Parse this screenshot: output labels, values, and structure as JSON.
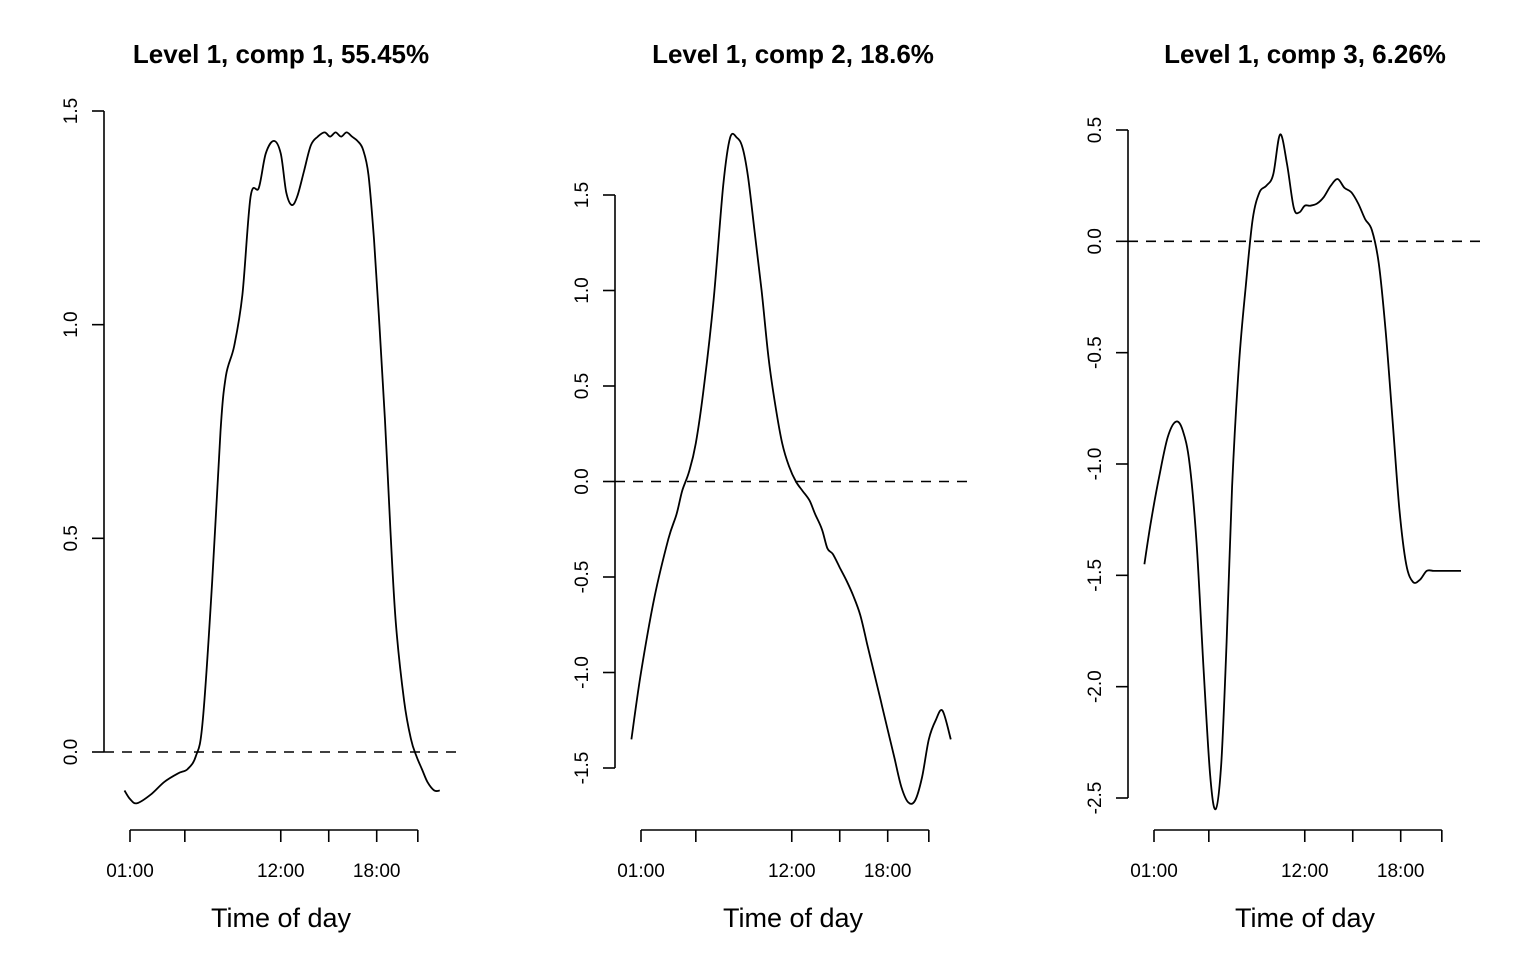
{
  "chart_data": [
    {
      "type": "line",
      "title": "Level 1, comp 1, 55.45%",
      "xlabel": "Time of day",
      "ylabel": "",
      "ylim": [
        -0.15,
        1.5
      ],
      "yticks": [
        0.0,
        0.5,
        1.0,
        1.5
      ],
      "ytick_labels": [
        "0.0",
        "0.5",
        "1.0",
        "1.5"
      ],
      "xlim": [
        0,
        24
      ],
      "xticks": [
        1,
        5,
        12,
        15.5,
        19,
        22
      ],
      "xtick_labels": [
        "01:00",
        "",
        "12:00",
        "",
        "18:00",
        ""
      ],
      "reference_line": 0,
      "series": [
        {
          "x": [
            0.6,
            1.0,
            1.5,
            2.5,
            3.5,
            4.5,
            5.2,
            5.8,
            6.3,
            7.0,
            7.6,
            8.0,
            8.6,
            9.2,
            9.8,
            10.4,
            10.9,
            11.5,
            12.0,
            12.4,
            12.8,
            13.2,
            13.7,
            14.2,
            14.7,
            15.2,
            15.6,
            16.0,
            16.4,
            16.8,
            17.2,
            17.6,
            18.0,
            18.4,
            18.8,
            19.2,
            19.6,
            20.0,
            20.4,
            21.0,
            21.5,
            21.9,
            22.3,
            22.7,
            23.2,
            23.6
          ],
          "y": [
            -0.09,
            -0.11,
            -0.12,
            -0.1,
            -0.07,
            -0.05,
            -0.04,
            -0.01,
            0.07,
            0.4,
            0.75,
            0.88,
            0.95,
            1.07,
            1.3,
            1.32,
            1.4,
            1.43,
            1.4,
            1.31,
            1.28,
            1.3,
            1.36,
            1.42,
            1.44,
            1.45,
            1.44,
            1.45,
            1.44,
            1.45,
            1.44,
            1.43,
            1.41,
            1.35,
            1.2,
            1.0,
            0.78,
            0.52,
            0.3,
            0.12,
            0.03,
            -0.01,
            -0.04,
            -0.07,
            -0.09,
            -0.09
          ]
        }
      ]
    },
    {
      "type": "line",
      "title": "Level 1, comp 2, 18.6%",
      "xlabel": "Time of day",
      "ylabel": "",
      "ylim": [
        -1.6,
        1.85
      ],
      "yticks": [
        -1.5,
        -1.0,
        -0.5,
        0.0,
        0.5,
        1.0,
        1.5
      ],
      "ytick_labels": [
        "-1.5",
        "-1.0",
        "-0.5",
        "0.0",
        "0.5",
        "1.0",
        "1.5"
      ],
      "xlim": [
        0,
        24
      ],
      "xticks": [
        1,
        5,
        12,
        15.5,
        19,
        22
      ],
      "xtick_labels": [
        "01:00",
        "",
        "12:00",
        "",
        "18:00",
        ""
      ],
      "reference_line": 0,
      "series": [
        {
          "x": [
            0.3,
            1.0,
            2.0,
            3.0,
            3.6,
            4.0,
            4.5,
            5.0,
            5.6,
            6.3,
            7.0,
            7.5,
            8.0,
            8.4,
            8.8,
            9.3,
            9.8,
            10.3,
            10.8,
            11.3,
            11.8,
            12.3,
            12.8,
            13.3,
            13.7,
            14.2,
            14.6,
            15.0,
            15.5,
            16.0,
            16.5,
            17.0,
            17.5,
            18.0,
            18.5,
            19.0,
            19.5,
            20.0,
            20.5,
            21.0,
            21.5,
            22.0,
            22.5,
            23.0,
            23.6
          ],
          "y": [
            -1.35,
            -1.0,
            -0.6,
            -0.3,
            -0.17,
            -0.05,
            0.05,
            0.2,
            0.5,
            0.95,
            1.55,
            1.8,
            1.8,
            1.75,
            1.6,
            1.3,
            1.0,
            0.65,
            0.4,
            0.2,
            0.08,
            0.0,
            -0.05,
            -0.1,
            -0.17,
            -0.25,
            -0.35,
            -0.38,
            -0.45,
            -0.52,
            -0.6,
            -0.7,
            -0.85,
            -1.0,
            -1.15,
            -1.3,
            -1.45,
            -1.6,
            -1.68,
            -1.67,
            -1.55,
            -1.35,
            -1.25,
            -1.2,
            -1.35
          ]
        }
      ]
    },
    {
      "type": "line",
      "title": "Level 1, comp 3, 6.26%",
      "xlabel": "Time of day",
      "ylabel": "",
      "ylim": [
        -2.5,
        0.5
      ],
      "yticks": [
        -2.5,
        -2.0,
        -1.5,
        -1.0,
        -0.5,
        0.0,
        0.5
      ],
      "ytick_labels": [
        "-2.5",
        "-2.0",
        "-1.5",
        "-1.0",
        "-0.5",
        "0.0",
        "0.5"
      ],
      "xlim": [
        0,
        24
      ],
      "xticks": [
        1,
        5,
        12,
        15.5,
        19,
        22
      ],
      "xtick_labels": [
        "01:00",
        "",
        "12:00",
        "",
        "18:00",
        ""
      ],
      "reference_line": 0,
      "series": [
        {
          "x": [
            0.3,
            0.8,
            1.4,
            2.0,
            2.6,
            3.1,
            3.6,
            4.1,
            4.6,
            5.1,
            5.5,
            5.9,
            6.3,
            6.7,
            7.2,
            7.7,
            8.2,
            8.7,
            9.2,
            9.7,
            10.2,
            10.7,
            11.2,
            11.6,
            12.0,
            12.4,
            12.9,
            13.4,
            13.9,
            14.4,
            14.9,
            15.4,
            15.9,
            16.4,
            16.9,
            17.4,
            17.9,
            18.4,
            18.9,
            19.4,
            19.9,
            20.4,
            20.9,
            21.4,
            21.9,
            22.4,
            22.9,
            23.4
          ],
          "y": [
            -1.45,
            -1.25,
            -1.05,
            -0.88,
            -0.81,
            -0.85,
            -1.0,
            -1.35,
            -1.9,
            -2.4,
            -2.55,
            -2.35,
            -1.8,
            -1.1,
            -0.55,
            -0.2,
            0.1,
            0.22,
            0.25,
            0.3,
            0.48,
            0.35,
            0.15,
            0.13,
            0.16,
            0.16,
            0.17,
            0.2,
            0.25,
            0.28,
            0.24,
            0.22,
            0.17,
            0.1,
            0.05,
            -0.1,
            -0.4,
            -0.8,
            -1.2,
            -1.45,
            -1.53,
            -1.52,
            -1.48,
            -1.48,
            -1.48,
            -1.48,
            -1.48,
            -1.48
          ]
        }
      ]
    }
  ]
}
